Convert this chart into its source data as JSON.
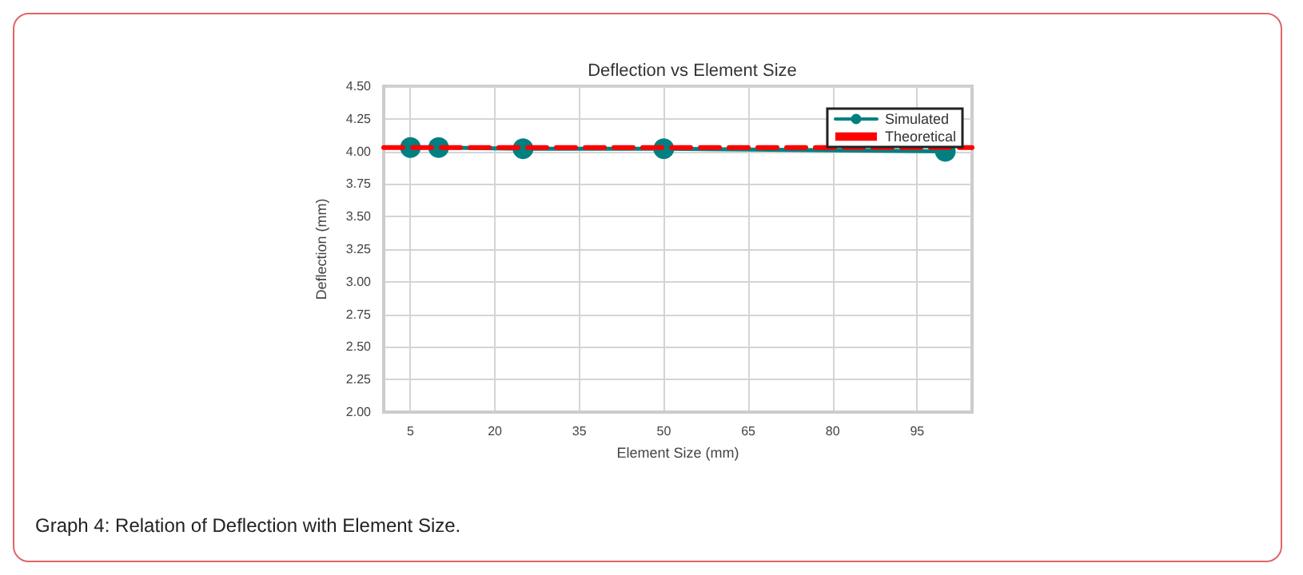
{
  "chart_data": {
    "type": "line",
    "title": "Deflection vs Element Size",
    "xlabel": "Element Size (mm)",
    "ylabel": "Deflection (mm)",
    "annotations": [
      "Graph 4: Relation of Deflection with Element Size."
    ],
    "series": [
      {
        "name": "Simulated",
        "color": "#008080",
        "x": [
          5,
          10,
          25,
          50,
          100
        ],
        "values": [
          4.03,
          4.03,
          4.02,
          4.02,
          4.0
        ],
        "marker": "circle",
        "line_style": "solid"
      },
      {
        "name": "Theoretical",
        "color": "#ff0000",
        "x": [
          0.25,
          104.75
        ],
        "values": [
          4.03,
          4.03
        ],
        "marker": "none",
        "line_style": "dashed"
      }
    ],
    "xlim": [
      0.25,
      104.75
    ],
    "xticks": [
      5,
      20,
      35,
      50,
      65,
      80,
      95
    ],
    "ylim": [
      2.0,
      4.5
    ],
    "yticks": [
      {
        "value": 2,
        "label": "2.00"
      },
      {
        "value": 2.25,
        "label": "2.25"
      },
      {
        "value": 2.5,
        "label": "2.50"
      },
      {
        "value": 2.75,
        "label": "2.75"
      },
      {
        "value": 3,
        "label": "3.00"
      },
      {
        "value": 3.25,
        "label": "3.25"
      },
      {
        "value": 3.5,
        "label": "3.50"
      },
      {
        "value": 3.75,
        "label": "3.75"
      },
      {
        "value": 4,
        "label": "4.00"
      },
      {
        "value": 4.25,
        "label": "4.25"
      },
      {
        "value": 4.5,
        "label": "4.50"
      }
    ],
    "grid": true,
    "legend": "top right"
  }
}
